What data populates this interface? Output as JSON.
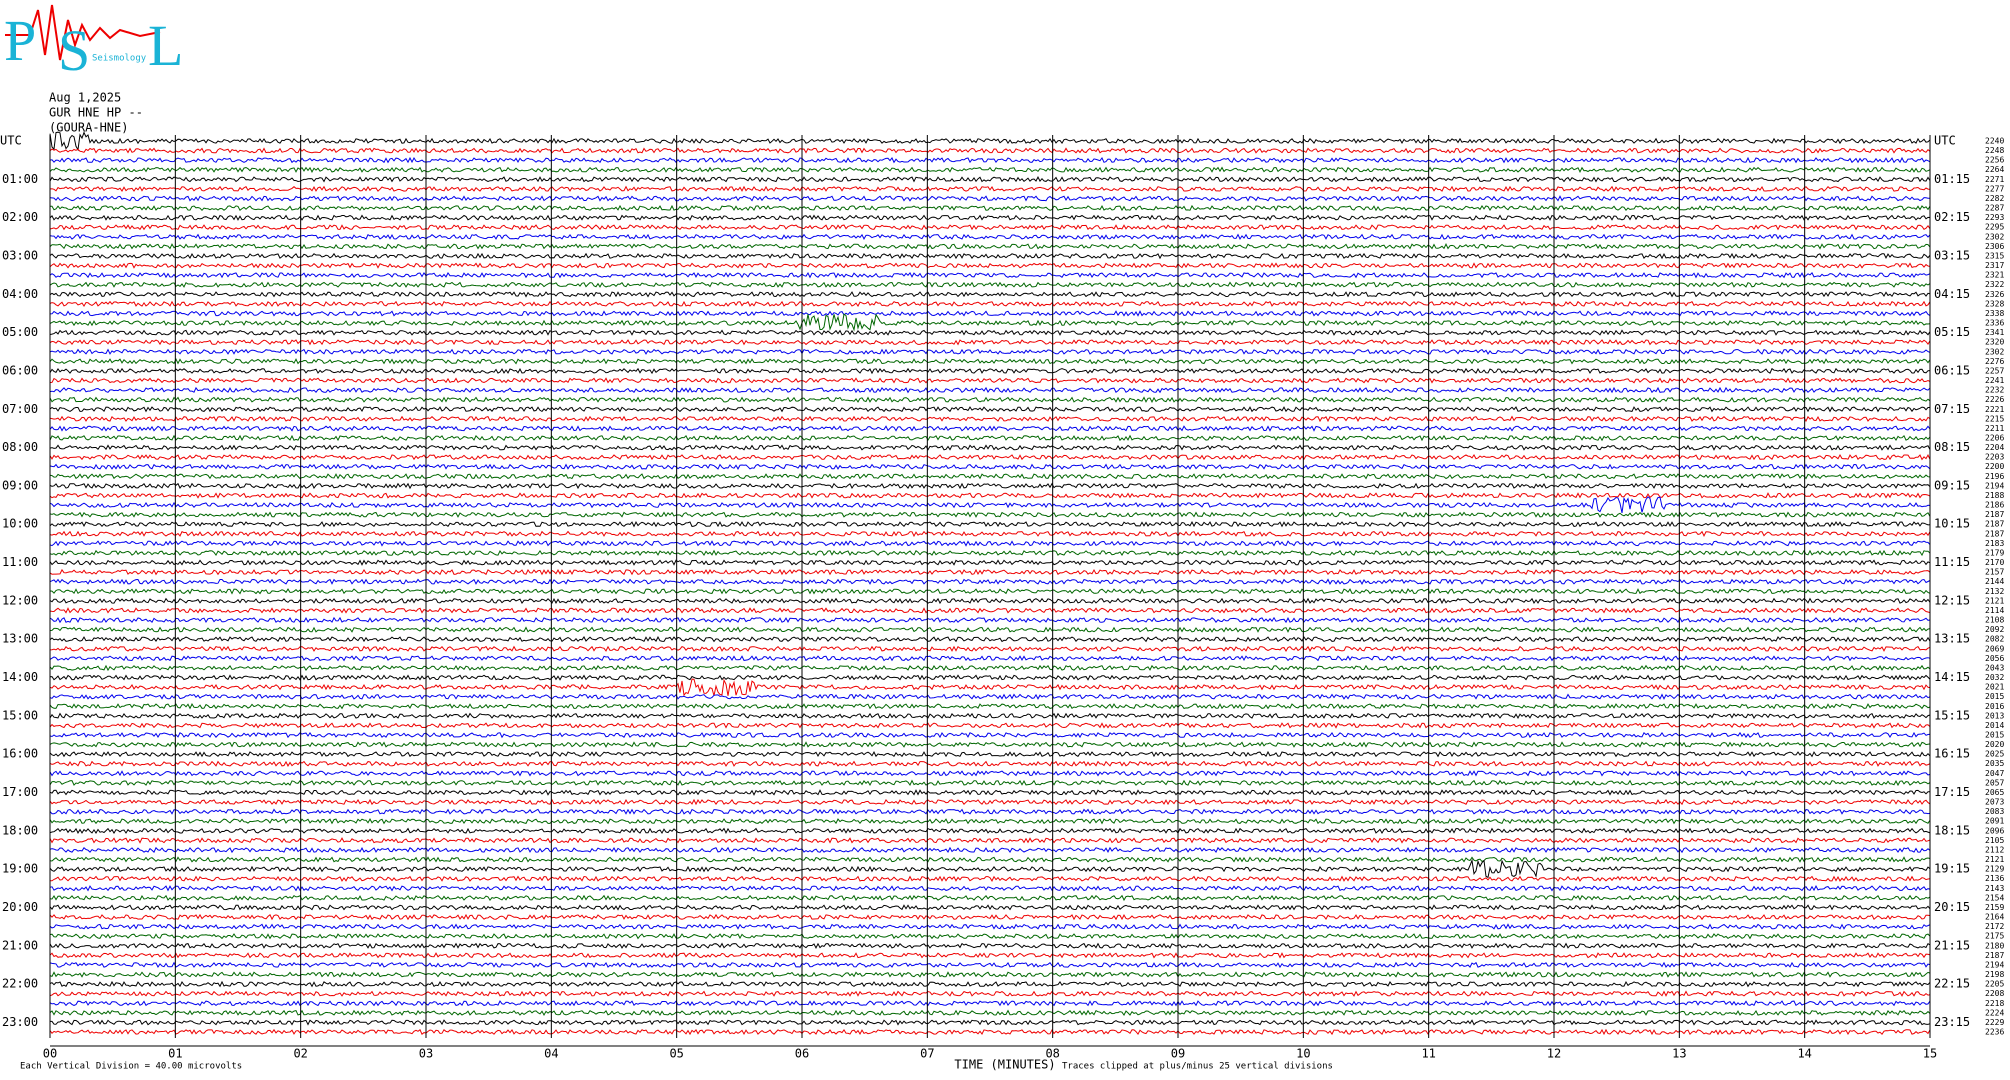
{
  "logo": {
    "letters": [
      "P",
      "S",
      "L"
    ],
    "caption": "Seismology"
  },
  "header": {
    "date": "Aug 1,2025",
    "channel": "GUR HNE HP --",
    "station": "(GOURA-HNE)"
  },
  "plot": {
    "left_labels": [
      "UTC",
      "01:00",
      "02:00",
      "03:00",
      "04:00",
      "05:00",
      "06:00",
      "07:00",
      "08:00",
      "09:00",
      "10:00",
      "11:00",
      "12:00",
      "13:00",
      "14:00",
      "15:00",
      "16:00",
      "17:00",
      "18:00",
      "19:00",
      "20:00",
      "21:00",
      "22:00",
      "23:00"
    ],
    "right_labels": [
      "UTC",
      "01:15",
      "02:15",
      "03:15",
      "04:15",
      "05:15",
      "06:15",
      "07:15",
      "08:15",
      "09:15",
      "10:15",
      "11:15",
      "12:15",
      "13:15",
      "14:15",
      "15:15",
      "16:15",
      "17:15",
      "18:15",
      "19:15",
      "20:15",
      "21:15",
      "22:15",
      "23:15"
    ],
    "row_numbers": [
      "2240",
      "2248",
      "2256",
      "2264",
      "2271",
      "2277",
      "2282",
      "2287",
      "2293",
      "2295",
      "2302",
      "2306",
      "2315",
      "2317",
      "2321",
      "2322",
      "2326",
      "2328",
      "2338",
      "2336",
      "2341",
      "2320",
      "2302",
      "2276",
      "2257",
      "2241",
      "2232",
      "2226",
      "2221",
      "2215",
      "2211",
      "2206",
      "2204",
      "2203",
      "2200",
      "2196",
      "2194",
      "2188",
      "2186",
      "2187",
      "2187",
      "2187",
      "2183",
      "2179",
      "2170",
      "2157",
      "2144",
      "2132",
      "2121",
      "2114",
      "2108",
      "2092",
      "2082",
      "2069",
      "2056",
      "2043",
      "2032",
      "2021",
      "2015",
      "2016",
      "2013",
      "2014",
      "2015",
      "2020",
      "2025",
      "2035",
      "2047",
      "2057",
      "2065",
      "2073",
      "2083",
      "2091",
      "2096",
      "2105",
      "2112",
      "2121",
      "2129",
      "2136",
      "2143",
      "2154",
      "2159",
      "2164",
      "2172",
      "2175",
      "2180",
      "2187",
      "2194",
      "2198",
      "2205",
      "2208",
      "2218",
      "2224",
      "2229",
      "2236"
    ],
    "trace_colors": [
      "#000000",
      "#ee0000",
      "#0000ee",
      "#006600"
    ],
    "x_ticks": [
      {
        "value": 0,
        "label": "00"
      },
      {
        "value": 1,
        "label": "01"
      },
      {
        "value": 2,
        "label": "02"
      },
      {
        "value": 3,
        "label": "03"
      },
      {
        "value": 4,
        "label": "04"
      },
      {
        "value": 5,
        "label": "05"
      },
      {
        "value": 6,
        "label": "06"
      },
      {
        "value": 7,
        "label": "07"
      },
      {
        "value": 8,
        "label": "08"
      },
      {
        "value": 9,
        "label": "09"
      },
      {
        "value": 10,
        "label": "10"
      },
      {
        "value": 11,
        "label": "11"
      },
      {
        "value": 12,
        "label": "12"
      },
      {
        "value": 13,
        "label": "13"
      },
      {
        "value": 14,
        "label": "14"
      },
      {
        "value": 15,
        "label": "15"
      }
    ],
    "x_label": "TIME (MINUTES)",
    "footer_left": "Each Vertical Division =   40.00 microvolts",
    "footer_right": "Traces clipped at plus/minus 25 vertical divisions"
  }
}
